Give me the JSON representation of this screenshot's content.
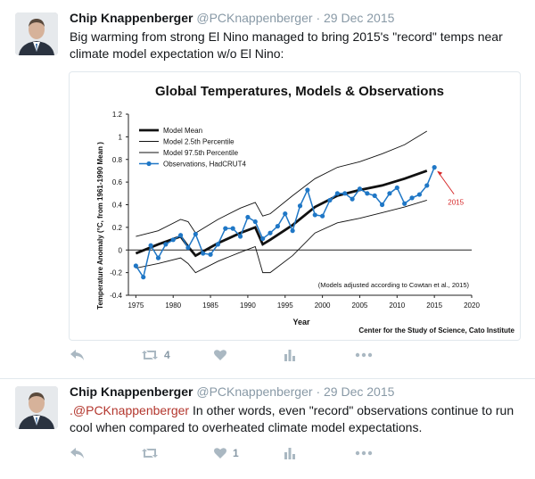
{
  "tweets": [
    {
      "name": "Chip Knappenberger",
      "handle": "@PCKnappenberger",
      "date": "29 Dec 2015",
      "text": "Big warming from strong El Nino managed to bring 2015's \"record\" temps near climate model expectation w/o El Nino:",
      "retweets": "4",
      "likes": ""
    },
    {
      "name": "Chip Knappenberger",
      "handle": "@PCKnappenberger",
      "date": "29 Dec 2015",
      "mention": ".@PCKnappenberger",
      "text": " In other words, even \"record\" observations continue to run cool when compared to overheated climate model expectations.",
      "retweets": "",
      "likes": "1"
    }
  ],
  "separator": "·",
  "colors": {
    "link": "#b3362d",
    "obs": "#1f77c6",
    "annotation": "#d62728"
  },
  "chart_data": {
    "type": "line",
    "title": "Global Temperatures, Models & Observations",
    "xlabel": "Year",
    "ylabel": "Temperature Anomaly (°C, from 1961-1990 Mean )",
    "xlim": [
      1974,
      2020
    ],
    "ylim": [
      -0.4,
      1.2
    ],
    "xticks": [
      1975,
      1980,
      1985,
      1990,
      1995,
      2000,
      2005,
      2010,
      2015,
      2020
    ],
    "yticks": [
      -0.4,
      -0.2,
      0,
      0.2,
      0.4,
      0.6,
      0.8,
      1.0,
      1.2
    ],
    "ytick_labels": [
      "-0.4",
      "-0.2",
      "0",
      "0.2",
      "0.4",
      "0.6",
      "0.8",
      "1",
      "1.2"
    ],
    "note": "(Models adjusted according to Cowtan et al., 2015)",
    "credit": "Center for the Study of Science, Cato Institute",
    "annotation": {
      "label": "2015",
      "x": 2015,
      "y": 0.73
    },
    "legend_position": "top-left",
    "series": [
      {
        "name": "Model Mean",
        "style": "thick",
        "x": [
          1975,
          1978,
          1981,
          1982,
          1983,
          1986,
          1989,
          1991,
          1992,
          1993,
          1996,
          1999,
          2002,
          2005,
          2008,
          2011,
          2014
        ],
        "values": [
          -0.03,
          0.05,
          0.12,
          0.03,
          -0.05,
          0.06,
          0.15,
          0.2,
          0.05,
          0.09,
          0.22,
          0.38,
          0.48,
          0.53,
          0.57,
          0.63,
          0.7
        ]
      },
      {
        "name": "Model 2.5th Percentile",
        "style": "thin",
        "x": [
          1975,
          1978,
          1981,
          1982,
          1983,
          1986,
          1989,
          1991,
          1992,
          1993,
          1996,
          1999,
          2002,
          2005,
          2008,
          2011,
          2014
        ],
        "values": [
          -0.16,
          -0.12,
          -0.07,
          -0.12,
          -0.2,
          -0.1,
          -0.02,
          0.03,
          -0.2,
          -0.2,
          -0.05,
          0.15,
          0.24,
          0.28,
          0.33,
          0.38,
          0.44
        ]
      },
      {
        "name": "Model 97.5th Percentile",
        "style": "thin",
        "x": [
          1975,
          1978,
          1981,
          1982,
          1983,
          1986,
          1989,
          1991,
          1992,
          1993,
          1996,
          1999,
          2002,
          2005,
          2008,
          2011,
          2014
        ],
        "values": [
          0.12,
          0.17,
          0.27,
          0.25,
          0.15,
          0.27,
          0.37,
          0.42,
          0.3,
          0.32,
          0.48,
          0.63,
          0.73,
          0.78,
          0.85,
          0.93,
          1.05
        ]
      },
      {
        "name": "Observations, HadCRUT4",
        "style": "markers",
        "x": [
          1975,
          1976,
          1977,
          1978,
          1979,
          1980,
          1981,
          1982,
          1983,
          1984,
          1985,
          1986,
          1987,
          1988,
          1989,
          1990,
          1991,
          1992,
          1993,
          1994,
          1995,
          1996,
          1997,
          1998,
          1999,
          2000,
          2001,
          2002,
          2003,
          2004,
          2005,
          2006,
          2007,
          2008,
          2009,
          2010,
          2011,
          2012,
          2013,
          2014,
          2015
        ],
        "values": [
          -0.14,
          -0.24,
          0.04,
          -0.07,
          0.05,
          0.09,
          0.13,
          0.02,
          0.14,
          -0.03,
          -0.04,
          0.05,
          0.19,
          0.19,
          0.12,
          0.29,
          0.25,
          0.1,
          0.15,
          0.21,
          0.32,
          0.17,
          0.39,
          0.53,
          0.31,
          0.3,
          0.44,
          0.5,
          0.5,
          0.45,
          0.54,
          0.5,
          0.48,
          0.4,
          0.5,
          0.55,
          0.41,
          0.46,
          0.49,
          0.57,
          0.73
        ]
      }
    ]
  }
}
